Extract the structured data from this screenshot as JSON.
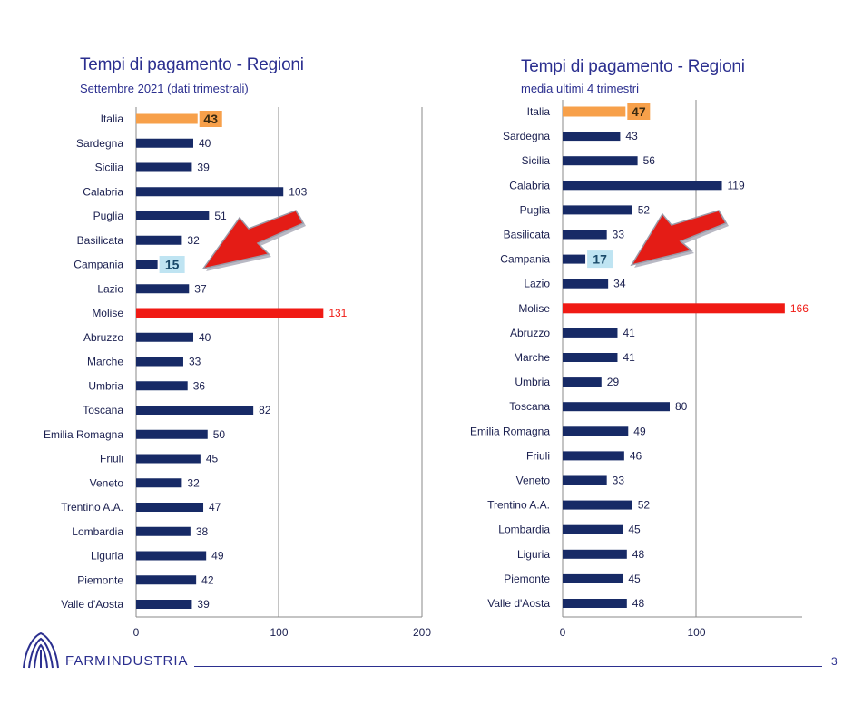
{
  "charts": [
    {
      "title": "Tempi di pagamento - Regioni",
      "subtitle": "Settembre 2021 (dati trimestrali)"
    },
    {
      "title": "Tempi di pagamento - Regioni",
      "subtitle": "media ultimi 4 trimestri"
    }
  ],
  "footer": {
    "brand": "FARMINDUSTRIA",
    "page": "3"
  },
  "colors": {
    "bar": "#172a66",
    "italia": "#f7a04a",
    "molise": "#f01a14",
    "highlight_label_bg": "#bfe4f2",
    "arrow": "#e41c16",
    "text": "#1a1f4f"
  },
  "chart_data": [
    {
      "type": "bar",
      "orientation": "horizontal",
      "categories": [
        "Italia",
        "Sardegna",
        "Sicilia",
        "Calabria",
        "Puglia",
        "Basilicata",
        "Campania",
        "Lazio",
        "Molise",
        "Abruzzo",
        "Marche",
        "Umbria",
        "Toscana",
        "Emilia Romagna",
        "Friuli",
        "Veneto",
        "Trentino A.A.",
        "Lombardia",
        "Liguria",
        "Piemonte",
        "Valle d'Aosta"
      ],
      "values": [
        43,
        40,
        39,
        103,
        51,
        32,
        15,
        37,
        131,
        40,
        33,
        36,
        82,
        50,
        45,
        32,
        47,
        38,
        49,
        42,
        39
      ],
      "title": "Tempi di pagamento - Regioni",
      "subtitle": "Settembre 2021 (dati trimestrali)",
      "xlim": [
        0,
        200
      ],
      "xticks": [
        0,
        100,
        200
      ],
      "highlight": {
        "Italia": "orange",
        "Molise": "red",
        "Campania": "light-blue label with arrow"
      },
      "grid": "vertical"
    },
    {
      "type": "bar",
      "orientation": "horizontal",
      "categories": [
        "Italia",
        "Sardegna",
        "Sicilia",
        "Calabria",
        "Puglia",
        "Basilicata",
        "Campania",
        "Lazio",
        "Molise",
        "Abruzzo",
        "Marche",
        "Umbria",
        "Toscana",
        "Emilia Romagna",
        "Friuli",
        "Veneto",
        "Trentino A.A.",
        "Lombardia",
        "Liguria",
        "Piemonte",
        "Valle d'Aosta"
      ],
      "values": [
        47,
        43,
        56,
        119,
        52,
        33,
        17,
        34,
        166,
        41,
        41,
        29,
        80,
        49,
        46,
        33,
        52,
        45,
        48,
        45,
        48
      ],
      "title": "Tempi di pagamento - Regioni",
      "subtitle": "media ultimi 4 trimestri",
      "xlim": [
        0,
        180
      ],
      "xticks": [
        0,
        100
      ],
      "highlight": {
        "Italia": "orange",
        "Molise": "red",
        "Campania": "light-blue label with arrow"
      },
      "grid": "vertical"
    }
  ]
}
